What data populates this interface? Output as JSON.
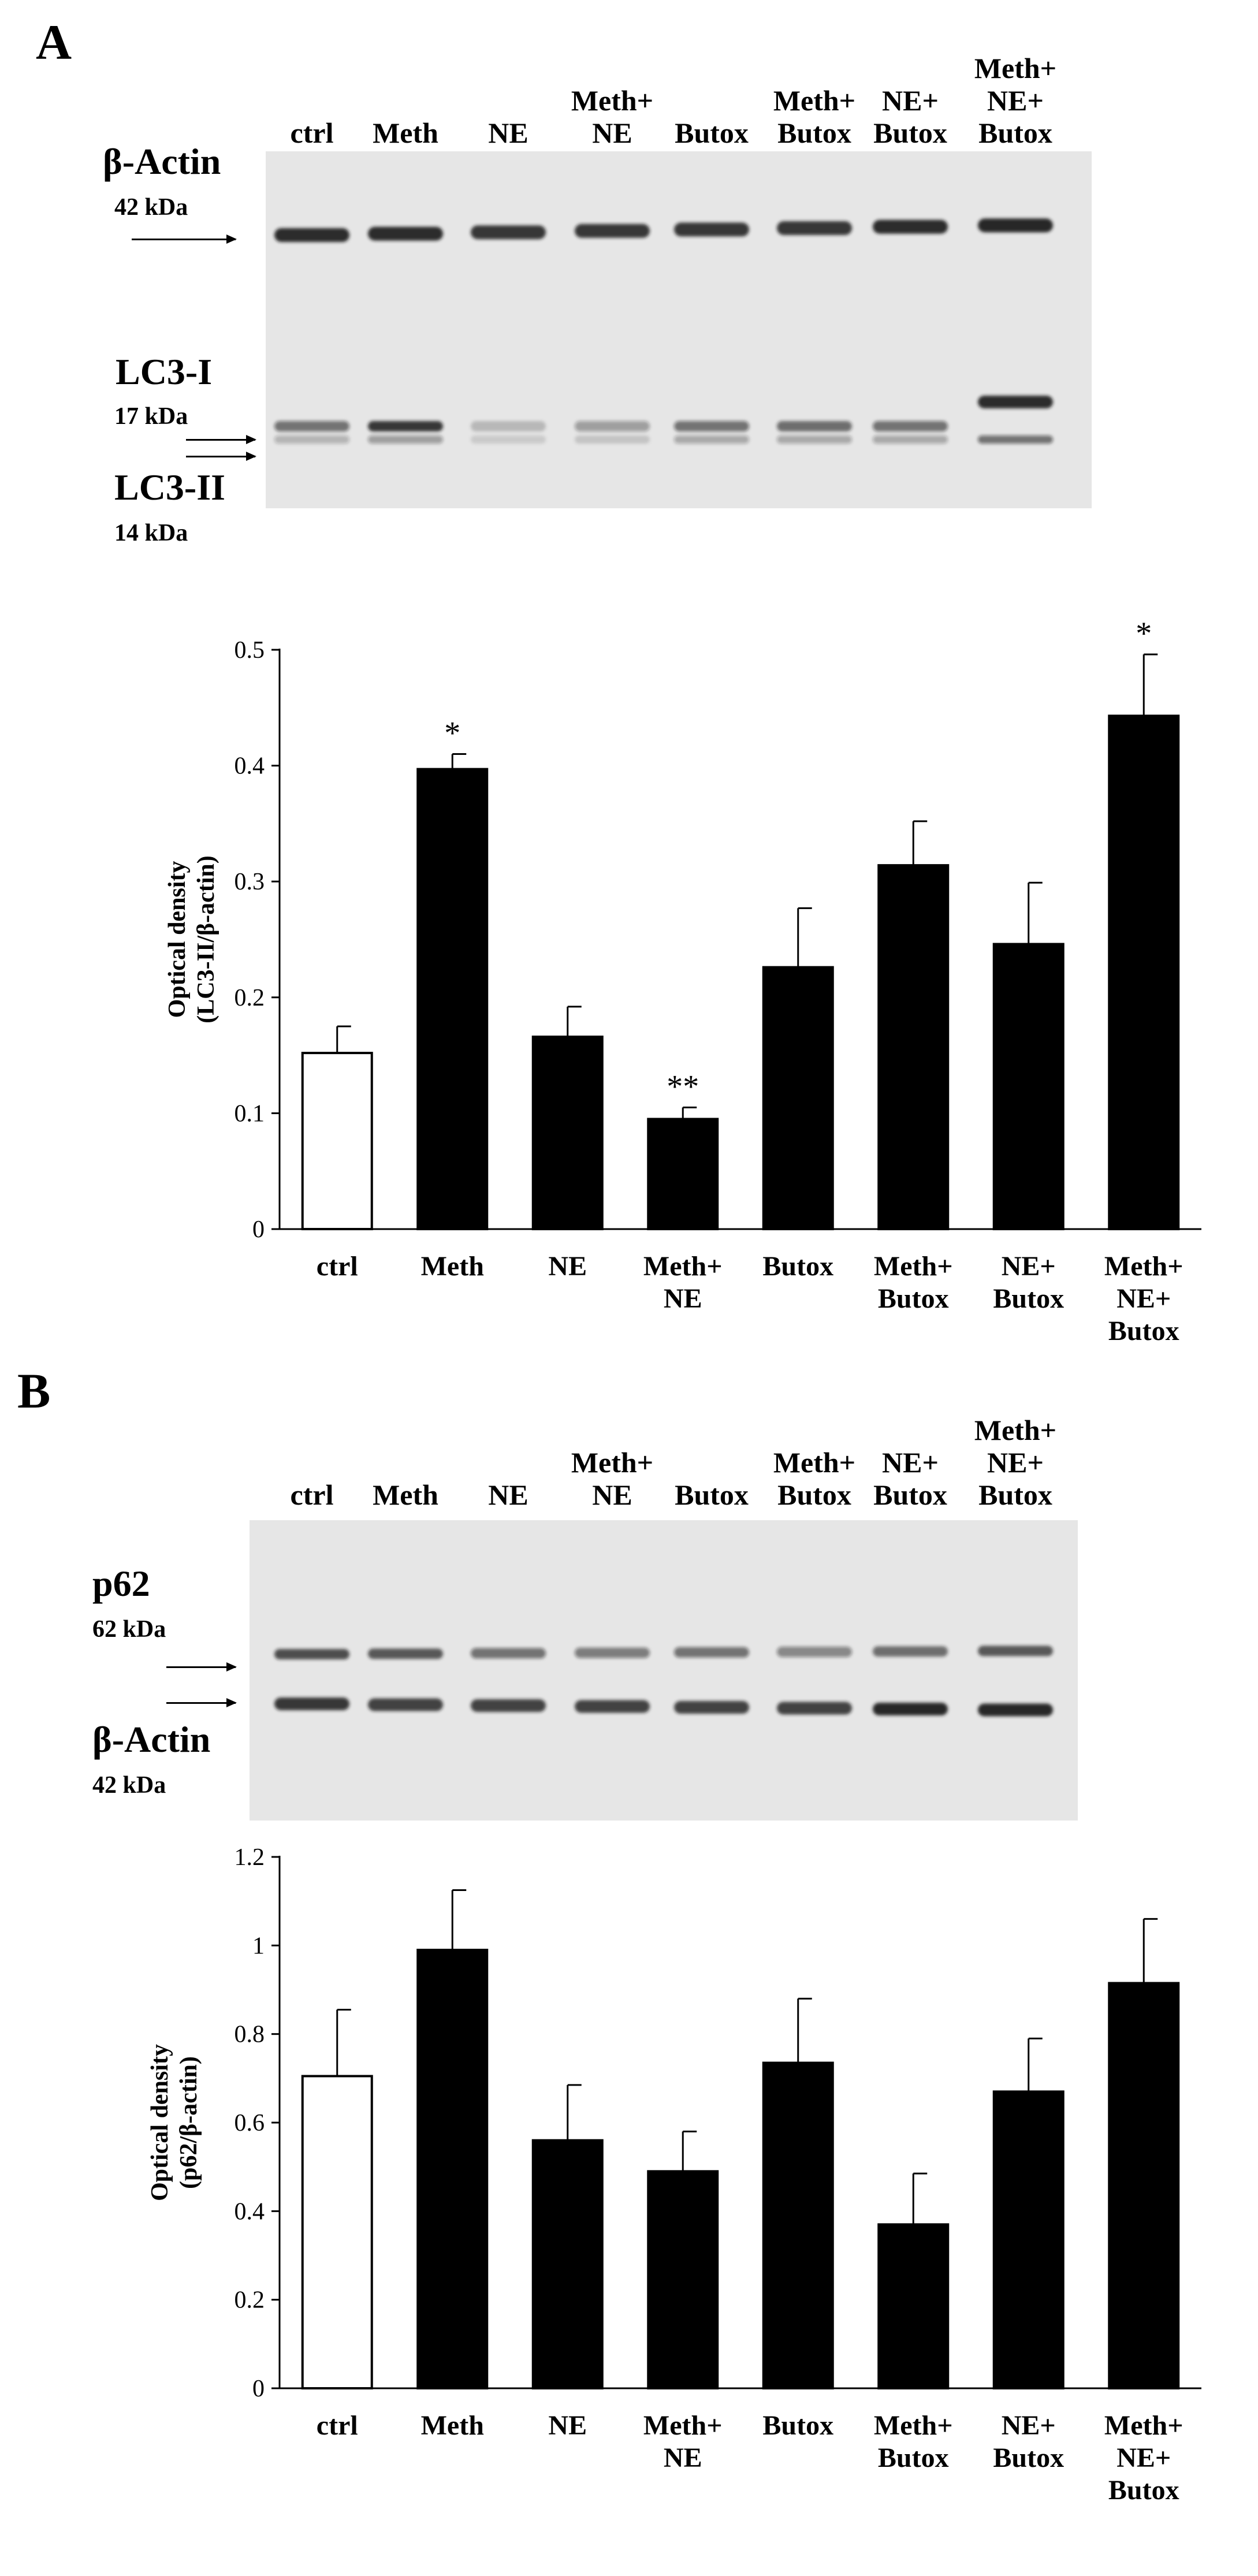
{
  "panel_a": {
    "letter": "A",
    "blot": {
      "lane_labels": [
        "ctrl",
        "Meth",
        "NE",
        "Meth+\nNE",
        "Butox",
        "Meth+\nButox",
        "NE+\nButox",
        "Meth+\nNE+\nButox"
      ],
      "proteins": [
        {
          "name": "β-Actin",
          "kda": "42 kDa"
        },
        {
          "name": "LC3-I",
          "kda": "17 kDa"
        },
        {
          "name": "LC3-II",
          "kda": "14 kDa"
        }
      ]
    }
  },
  "panel_b": {
    "letter": "B",
    "blot": {
      "lane_labels": [
        "ctrl",
        "Meth",
        "NE",
        "Meth+\nNE",
        "Butox",
        "Meth+\nButox",
        "NE+\nButox",
        "Meth+\nNE+\nButox"
      ],
      "proteins": [
        {
          "name": "p62",
          "kda": "62 kDa"
        },
        {
          "name": "β-Actin",
          "kda": "42 kDa"
        }
      ]
    }
  },
  "chart_data": [
    {
      "type": "bar",
      "categories": [
        "ctrl",
        "Meth",
        "NE",
        "Meth+\nNE",
        "Butox",
        "Meth+\nButox",
        "NE+\nButox",
        "Meth+\nNE+\nButox"
      ],
      "values": [
        0.152,
        0.397,
        0.166,
        0.095,
        0.226,
        0.314,
        0.246,
        0.443
      ],
      "errors": [
        0.023,
        0.013,
        0.026,
        0.01,
        0.051,
        0.038,
        0.053,
        0.053
      ],
      "annotations": [
        "",
        "*",
        "",
        "**",
        "",
        "",
        "",
        "*"
      ],
      "fills": [
        "#ffffff",
        "#000000",
        "#000000",
        "#000000",
        "#000000",
        "#000000",
        "#000000",
        "#000000"
      ],
      "ylabel": "Optical density\n(LC3-II/β-actin)",
      "yticks": [
        "0",
        "0.1",
        "0.2",
        "0.3",
        "0.4",
        "0.5"
      ],
      "ylim": [
        0,
        0.5
      ],
      "grid": false
    },
    {
      "type": "bar",
      "categories": [
        "ctrl",
        "Meth",
        "NE",
        "Meth+\nNE",
        "Butox",
        "Meth+\nButox",
        "NE+\nButox",
        "Meth+\nNE+\nButox"
      ],
      "values": [
        0.705,
        0.99,
        0.56,
        0.49,
        0.735,
        0.37,
        0.67,
        0.915
      ],
      "errors": [
        0.15,
        0.135,
        0.125,
        0.09,
        0.145,
        0.115,
        0.12,
        0.145
      ],
      "annotations": [
        "",
        "",
        "",
        "",
        "",
        "",
        "",
        ""
      ],
      "fills": [
        "#ffffff",
        "#000000",
        "#000000",
        "#000000",
        "#000000",
        "#000000",
        "#000000",
        "#000000"
      ],
      "ylabel": "Optical density\n(p62/β-actin)",
      "yticks": [
        "0",
        "0.2",
        "0.4",
        "0.6",
        "0.8",
        "1",
        "1.2"
      ],
      "ylim": [
        0,
        1.2
      ],
      "grid": false
    }
  ]
}
